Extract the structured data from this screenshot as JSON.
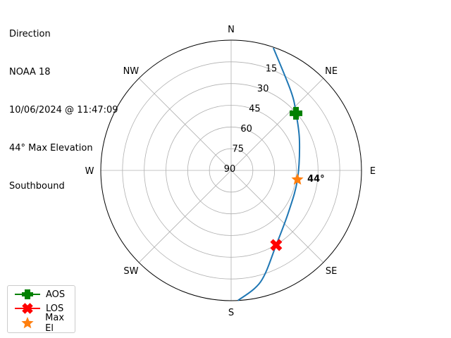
{
  "title_lines": [
    "Direction",
    "NOAA 18",
    "10/06/2024 @ 11:47:09",
    "44° Max Elevation",
    "Southbound"
  ],
  "chart_data": {
    "type": "polar",
    "theta_direction": "clockwise",
    "theta_zero": "N",
    "direction_labels": [
      {
        "label": "N",
        "az": 0
      },
      {
        "label": "NE",
        "az": 45
      },
      {
        "label": "E",
        "az": 90
      },
      {
        "label": "SE",
        "az": 135
      },
      {
        "label": "S",
        "az": 180
      },
      {
        "label": "SW",
        "az": 225
      },
      {
        "label": "W",
        "az": 270
      },
      {
        "label": "NW",
        "az": 315
      }
    ],
    "radial_axis": {
      "inverted": true,
      "range": [
        90,
        0
      ],
      "ticks": [
        15,
        30,
        45,
        60,
        75,
        90
      ],
      "tick_labels": [
        "15",
        "30",
        "45",
        "60",
        "75",
        "90"
      ],
      "label_az": 22.5
    },
    "grid": true,
    "track": {
      "color": "#1f77b4",
      "points_az_el": [
        [
          19,
          0.5
        ],
        [
          37.2,
          21.6
        ],
        [
          48.6,
          30.3
        ],
        [
          66.6,
          38.6
        ],
        [
          97.9,
          43.8
        ],
        [
          125.3,
          41.2
        ],
        [
          148.9,
          29.8
        ],
        [
          165.1,
          10.5
        ],
        [
          177,
          0
        ]
      ]
    },
    "markers": [
      {
        "name": "AOS",
        "az": 48.6,
        "el": 30.3,
        "color": "#008000",
        "shape": "plus"
      },
      {
        "name": "LOS",
        "az": 148.9,
        "el": 29.8,
        "color": "#ff0000",
        "shape": "x"
      },
      {
        "name": "Max El",
        "az": 97.9,
        "el": 43.8,
        "color": "#ff7f0e",
        "shape": "star"
      }
    ],
    "annotation": {
      "text": "44°",
      "az": 97.9,
      "el": 43.8
    },
    "legend": {
      "position": "lower-left",
      "entries": [
        "AOS",
        "LOS",
        "Max El"
      ]
    }
  }
}
